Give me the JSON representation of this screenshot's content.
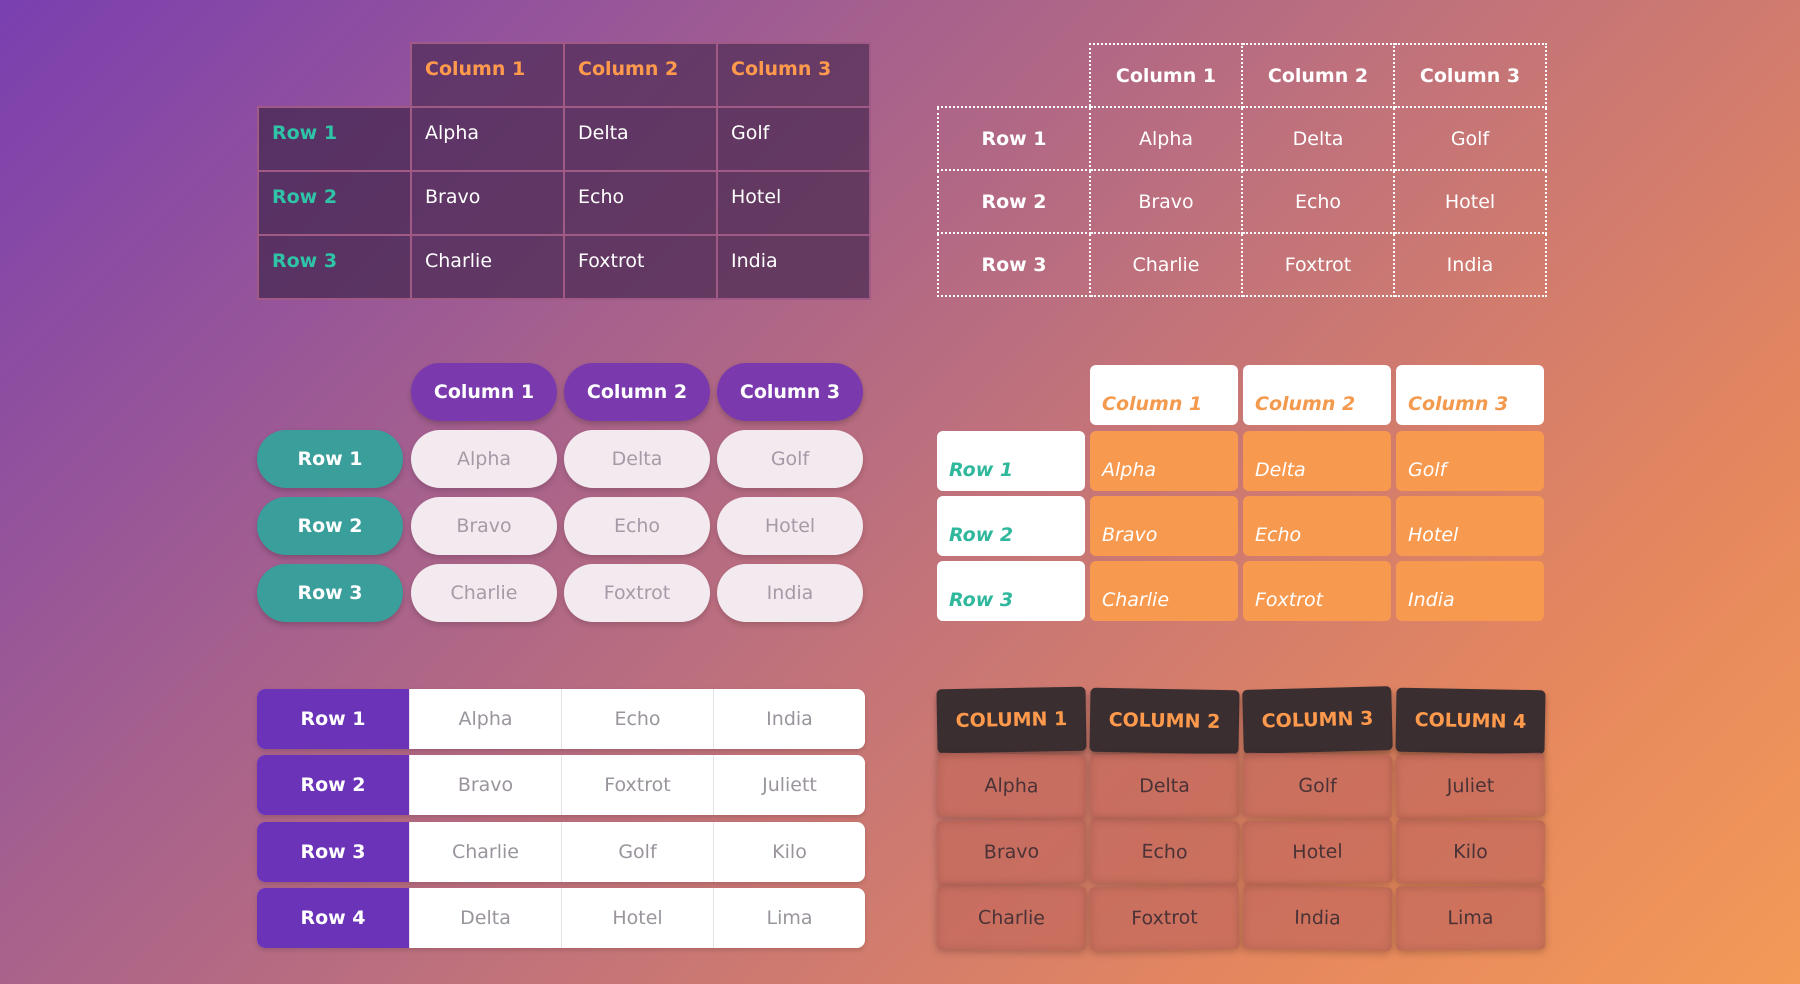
{
  "tables": {
    "t1": {
      "columns": [
        "Column 1",
        "Column 2",
        "Column 3"
      ],
      "rows": [
        {
          "label": "Row 1",
          "cells": [
            "Alpha",
            "Delta",
            "Golf"
          ]
        },
        {
          "label": "Row 2",
          "cells": [
            "Bravo",
            "Echo",
            "Hotel"
          ]
        },
        {
          "label": "Row 3",
          "cells": [
            "Charlie",
            "Foxtrot",
            "India"
          ]
        }
      ]
    },
    "t2": {
      "columns": [
        "Column 1",
        "Column 2",
        "Column 3"
      ],
      "rows": [
        {
          "label": "Row 1",
          "cells": [
            "Alpha",
            "Delta",
            "Golf"
          ]
        },
        {
          "label": "Row 2",
          "cells": [
            "Bravo",
            "Echo",
            "Hotel"
          ]
        },
        {
          "label": "Row 3",
          "cells": [
            "Charlie",
            "Foxtrot",
            "India"
          ]
        }
      ]
    },
    "t3": {
      "columns": [
        "Column 1",
        "Column 2",
        "Column 3"
      ],
      "rows": [
        {
          "label": "Row 1",
          "cells": [
            "Alpha",
            "Delta",
            "Golf"
          ]
        },
        {
          "label": "Row 2",
          "cells": [
            "Bravo",
            "Echo",
            "Hotel"
          ]
        },
        {
          "label": "Row 3",
          "cells": [
            "Charlie",
            "Foxtrot",
            "India"
          ]
        }
      ]
    },
    "t4": {
      "columns": [
        "Column 1",
        "Column 2",
        "Column 3"
      ],
      "rows": [
        {
          "label": "Row 1",
          "cells": [
            "Alpha",
            "Delta",
            "Golf"
          ]
        },
        {
          "label": "Row 2",
          "cells": [
            "Bravo",
            "Echo",
            "Hotel"
          ]
        },
        {
          "label": "Row 3",
          "cells": [
            "Charlie",
            "Foxtrot",
            "India"
          ]
        }
      ]
    },
    "t5": {
      "rows": [
        {
          "label": "Row 1",
          "cells": [
            "Alpha",
            "Echo",
            "India"
          ]
        },
        {
          "label": "Row 2",
          "cells": [
            "Bravo",
            "Foxtrot",
            "Juliett"
          ]
        },
        {
          "label": "Row 3",
          "cells": [
            "Charlie",
            "Golf",
            "Kilo"
          ]
        },
        {
          "label": "Row 4",
          "cells": [
            "Delta",
            "Hotel",
            "Lima"
          ]
        }
      ]
    },
    "t6": {
      "columns": [
        "Column 1",
        "Column 2",
        "Column 3",
        "Column 4"
      ],
      "rows": [
        {
          "cells": [
            "Alpha",
            "Delta",
            "Golf",
            "Juliet"
          ]
        },
        {
          "cells": [
            "Bravo",
            "Echo",
            "Hotel",
            "Kilo"
          ]
        },
        {
          "cells": [
            "Charlie",
            "Foxtrot",
            "India",
            "Lima"
          ]
        }
      ]
    }
  },
  "colors": {
    "accent_orange": "#ff9a4d",
    "accent_teal": "#2fc4a8",
    "accent_purple": "#6a33b8"
  }
}
